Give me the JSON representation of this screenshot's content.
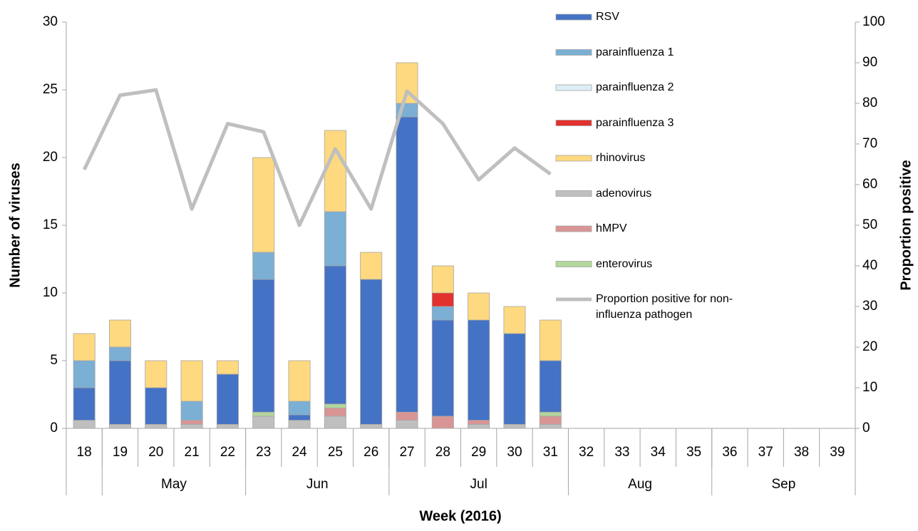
{
  "chart_data": {
    "type": "stacked-bar-line",
    "x_label": "Week (2016)",
    "y_label": "Number of viruses",
    "y2_label": "Proportion positive",
    "categories": [
      "18",
      "19",
      "20",
      "21",
      "22",
      "23",
      "24",
      "25",
      "26",
      "27",
      "28",
      "29",
      "30",
      "31",
      "32",
      "33",
      "34",
      "35",
      "36",
      "37",
      "38",
      "39"
    ],
    "groups": [
      {
        "label": null,
        "span": 1
      },
      {
        "label": "May",
        "span": 4
      },
      {
        "label": "Jun",
        "span": 4
      },
      {
        "label": "Jul",
        "span": 5
      },
      {
        "label": "Aug",
        "span": 4
      },
      {
        "label": "Sep",
        "span": 4
      }
    ],
    "ylim": [
      0,
      30
    ],
    "yticks": [
      0,
      5,
      10,
      15,
      20,
      25,
      30
    ],
    "y2lim": [
      0,
      100
    ],
    "y2ticks": [
      0,
      10,
      20,
      30,
      40,
      50,
      60,
      70,
      80,
      90,
      100
    ],
    "legend": "top-right",
    "series": [
      {
        "name": "RSV",
        "type": "bar",
        "color": "#4472c4",
        "values": [
          2.4,
          4.7,
          2.7,
          0,
          3.7,
          9.8,
          0.4,
          10.2,
          10.7,
          21.8,
          7.1,
          7.4,
          6.7,
          3.8,
          null,
          null,
          null,
          null,
          null,
          null,
          null,
          null
        ]
      },
      {
        "name": "parainfluenza 1",
        "type": "bar",
        "color": "#7bafd4",
        "values": [
          2,
          1,
          0,
          1.4,
          0,
          2,
          1,
          4,
          0,
          1,
          1,
          0,
          0,
          0,
          null,
          null,
          null,
          null,
          null,
          null,
          null,
          null
        ]
      },
      {
        "name": "parainfluenza 2",
        "type": "bar",
        "color": "#ddeef6",
        "values": [
          0,
          0,
          0,
          0,
          0,
          0,
          0,
          0,
          0,
          0,
          0,
          0,
          0,
          0,
          null,
          null,
          null,
          null,
          null,
          null,
          null,
          null
        ]
      },
      {
        "name": "parainfluenza 3",
        "type": "bar",
        "color": "#e3312d",
        "values": [
          0,
          0,
          0,
          0,
          0,
          0,
          0,
          0,
          0,
          0,
          1,
          0,
          0,
          0,
          null,
          null,
          null,
          null,
          null,
          null,
          null,
          null
        ]
      },
      {
        "name": "rhinovirus",
        "type": "bar",
        "color": "#ffd97f",
        "values": [
          2,
          2,
          2,
          3,
          1,
          7,
          3,
          6,
          2,
          3,
          2,
          2,
          2,
          3,
          null,
          null,
          null,
          null,
          null,
          null,
          null,
          null
        ]
      },
      {
        "name": "adenovirus",
        "type": "bar",
        "color": "#bfbfbf",
        "values": [
          0.6,
          0.3,
          0.3,
          0.3,
          0.3,
          0.9,
          0.6,
          0.9,
          0.3,
          0.6,
          0,
          0.3,
          0.3,
          0.3,
          null,
          null,
          null,
          null,
          null,
          null,
          null,
          null
        ]
      },
      {
        "name": "hMPV",
        "type": "bar",
        "color": "#d99594",
        "values": [
          0,
          0,
          0,
          0.3,
          0,
          0,
          0,
          0.6,
          0,
          0.6,
          0.9,
          0.3,
          0,
          0.6,
          null,
          null,
          null,
          null,
          null,
          null,
          null,
          null
        ]
      },
      {
        "name": "enterovirus",
        "type": "bar",
        "color": "#b3d69b",
        "values": [
          0,
          0,
          0,
          0,
          0,
          0.3,
          0,
          0.3,
          0,
          0,
          0,
          0,
          0,
          0.3,
          null,
          null,
          null,
          null,
          null,
          null,
          null,
          null
        ]
      },
      {
        "name": "Proportion positive for non-influenza pathogen",
        "type": "line",
        "axis": "y2",
        "color": "#bfbfbf",
        "values": [
          63.7,
          82,
          83.3,
          54,
          75,
          73,
          50,
          68.8,
          54,
          83,
          75,
          61.2,
          69,
          62.6,
          null,
          null,
          null,
          null,
          null,
          null,
          null,
          null
        ]
      }
    ]
  }
}
